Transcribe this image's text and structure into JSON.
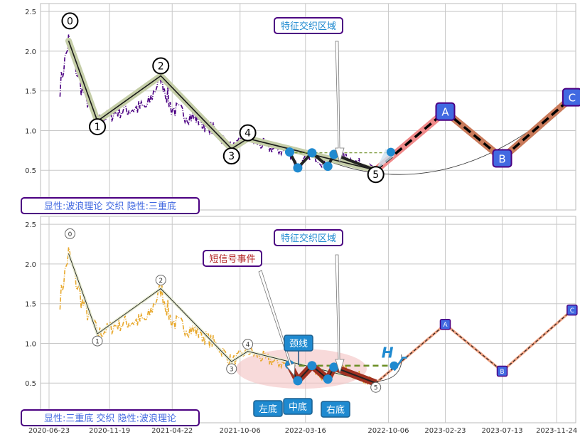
{
  "colors": {
    "panel_bg": "#eaeaf2",
    "grid": "#c8c8c8",
    "price_top": "#4b0082",
    "price_bottom": "#e8a92e",
    "wave_halo": "#c5cea8",
    "wave_line": "#1a1a1a",
    "forecast_red": "#f08a8a",
    "forecast_brown": "#c97a5a",
    "neckline": "#6b8e23",
    "pattern_dot": "#1f8ad0",
    "label_blue": "#4169e1",
    "label_border": "#4b0082",
    "zone_fill": "#f4c2c2",
    "box_text_blue": "#1f8ad0",
    "box_text_red": "#b22222"
  },
  "chart_data": [
    {
      "type": "line",
      "panel": "top",
      "ylim": [
        0,
        2.6
      ],
      "yticks": [
        "0.5",
        "1.0",
        "1.5",
        "2.0",
        "2.5"
      ],
      "xlim_dates": [
        "2020-06-02",
        "2024-01-10"
      ],
      "caption": "显性:波浪理论 交织 隐性:三重底",
      "annotation_box": "特征交织区域",
      "wave_points": [
        {
          "label": "0",
          "date": "2020-08-10",
          "value": 2.13
        },
        {
          "label": "1",
          "date": "2020-10-20",
          "value": 1.12
        },
        {
          "label": "2",
          "date": "2021-03-25",
          "value": 1.69
        },
        {
          "label": "3",
          "date": "2021-09-15",
          "value": 0.77
        },
        {
          "label": "4",
          "date": "2021-10-25",
          "value": 0.9
        },
        {
          "label": "5",
          "date": "2022-09-05",
          "value": 0.5
        }
      ],
      "forecast_points": [
        {
          "label": "A",
          "date": "2023-02-23",
          "value": 1.24
        },
        {
          "label": "B",
          "date": "2023-07-13",
          "value": 0.65
        },
        {
          "label": "C",
          "date": "2024-01-01",
          "value": 1.42
        }
      ],
      "triple_bottom_dots": [
        {
          "date": "2022-02-05",
          "value": 0.73
        },
        {
          "date": "2022-02-25",
          "value": 0.53
        },
        {
          "date": "2022-04-01",
          "value": 0.72
        },
        {
          "date": "2022-05-10",
          "value": 0.55
        },
        {
          "date": "2022-05-25",
          "value": 0.7
        }
      ],
      "neckline": {
        "start_date": "2022-02-05",
        "end_date": "2022-10-15",
        "value": 0.72
      }
    },
    {
      "type": "line",
      "panel": "bottom",
      "ylim": [
        0,
        2.6
      ],
      "yticks": [
        "0.5",
        "1.0",
        "1.5",
        "2.0",
        "2.5"
      ],
      "xticks": [
        "2020-06-23",
        "2020-11-19",
        "2021-04-22",
        "2021-10-06",
        "2022-03-16",
        "2022-10-06",
        "2023-02-23",
        "2023-07-13",
        "2023-11-24"
      ],
      "caption": "显性:三重底 交织 隐性:波浪理论",
      "annotation_box": "特征交织区域",
      "short_signal_box": "短信号事件",
      "neck_box": "颈线",
      "bottom_labels": [
        "左底",
        "中底",
        "右底"
      ],
      "wave_labels": [
        "0",
        "1",
        "2",
        "3",
        "4",
        "5",
        "A",
        "B",
        "C"
      ]
    }
  ]
}
